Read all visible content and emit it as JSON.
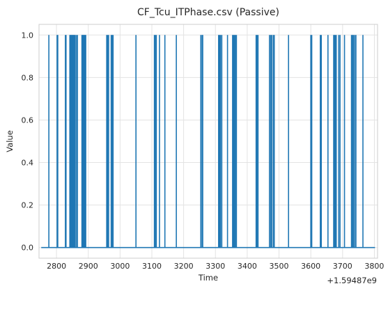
{
  "chart_data": {
    "type": "line",
    "title": "CF_Tcu_ITPhase.csv (Passive)",
    "xlabel": "Time",
    "ylabel": "Value",
    "x_offset_label": "+1.59487e9",
    "xlim": [
      2745,
      3810
    ],
    "ylim": [
      -0.05,
      1.05
    ],
    "x_ticks": [
      2800,
      2900,
      3000,
      3100,
      3200,
      3300,
      3400,
      3500,
      3600,
      3700,
      3800
    ],
    "y_ticks": [
      0.0,
      0.2,
      0.4,
      0.6,
      0.8,
      1.0
    ],
    "y_tick_labels": [
      "0.0",
      "0.2",
      "0.4",
      "0.6",
      "0.8",
      "1.0"
    ],
    "grid": true,
    "x_range": [
      2752,
      3802
    ],
    "series": [
      {
        "color": "#1f77b4",
        "baseline": 0,
        "high_value": 1,
        "pulse_times": [
          2776,
          2802,
          2804,
          2828,
          2830,
          2842,
          2844,
          2846,
          2848,
          2850,
          2852,
          2854,
          2856,
          2858,
          2862,
          2866,
          2880,
          2882,
          2884,
          2886,
          2888,
          2890,
          2892,
          2958,
          2961,
          2964,
          2972,
          2975,
          2978,
          3050,
          3108,
          3111,
          3114,
          3124,
          3141,
          3177,
          3254,
          3258,
          3260,
          3310,
          3313,
          3316,
          3320,
          3338,
          3354,
          3357,
          3360,
          3363,
          3366,
          3428,
          3431,
          3434,
          3470,
          3474,
          3477,
          3482,
          3485,
          3530,
          3600,
          3603,
          3630,
          3633,
          3654,
          3672,
          3674,
          3677,
          3680,
          3688,
          3692,
          3706,
          3728,
          3731,
          3734,
          3738,
          3742,
          3764
        ]
      }
    ]
  }
}
